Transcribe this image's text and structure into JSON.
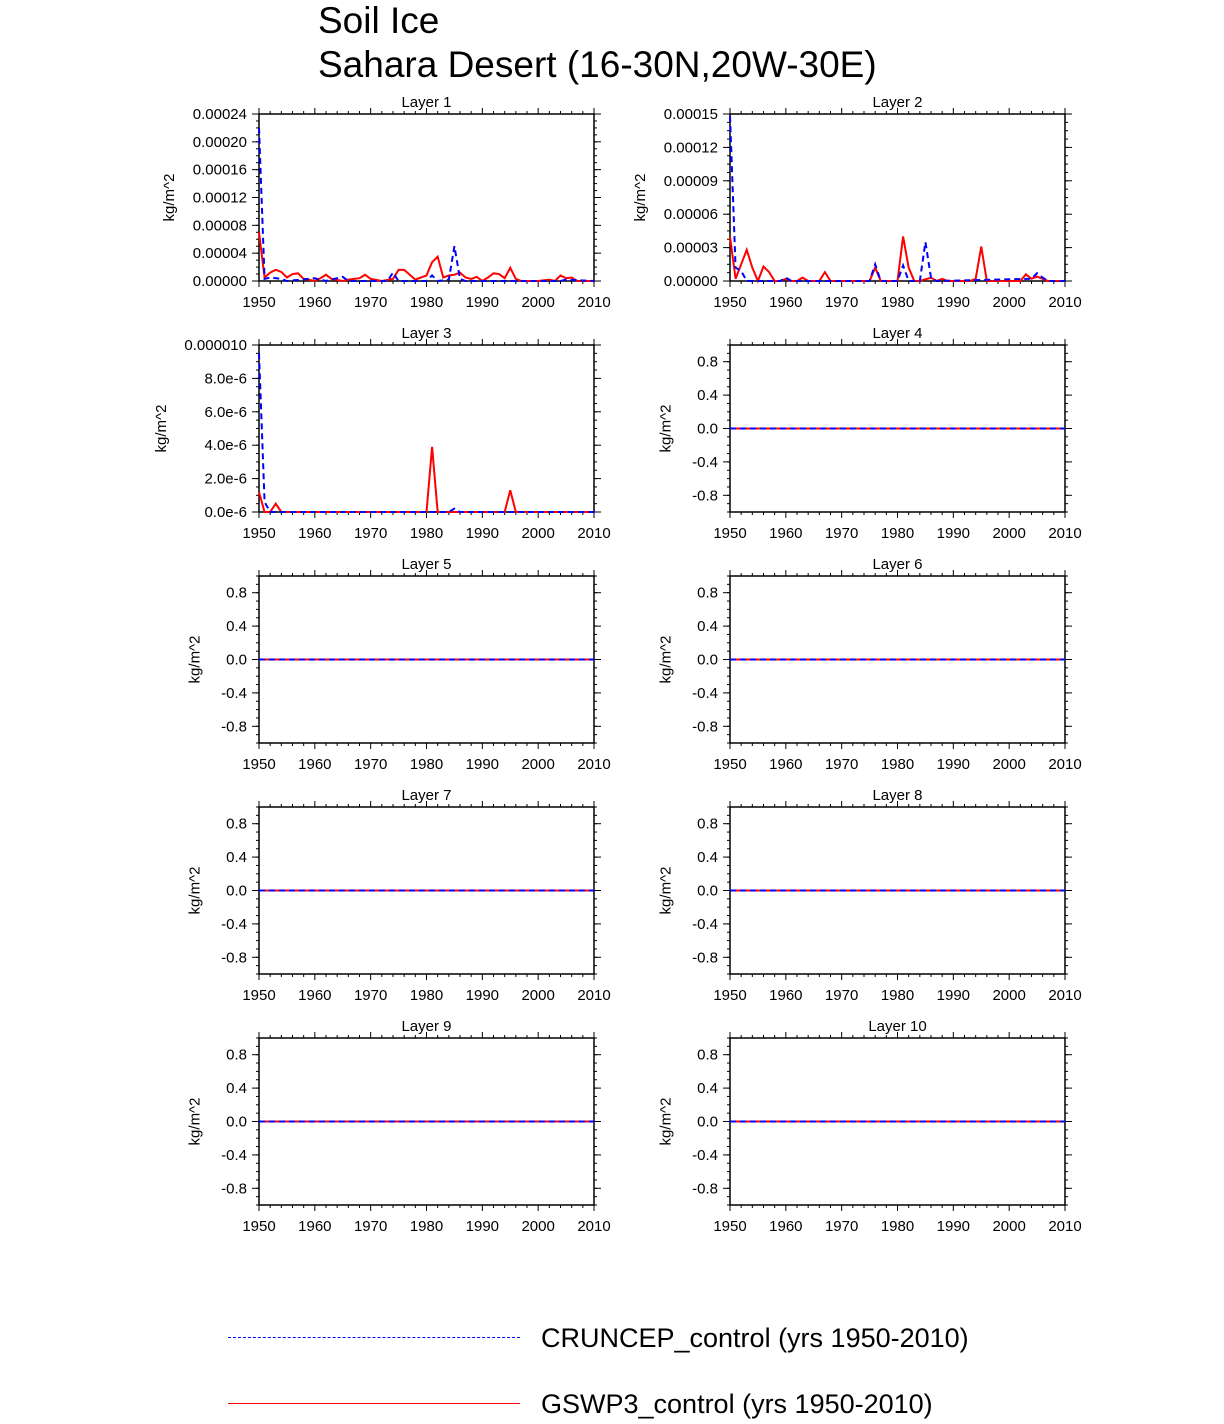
{
  "title": {
    "line1": "Soil Ice",
    "line2": "Sahara Desert (16-30N,20W-30E)"
  },
  "colors": {
    "cruncep": "#0000ff",
    "gswp3": "#ff0000",
    "axis": "#000000"
  },
  "legend": [
    {
      "label": "CRUNCEP_control (yrs 1950-2010)",
      "color": "#0000ff",
      "style": "dashed"
    },
    {
      "label": "GSWP3_control (yrs 1950-2010)",
      "color": "#ff0000",
      "style": "solid"
    }
  ],
  "chart_data": [
    {
      "type": "line",
      "title": "Layer 1",
      "ylabel": "kg/m^2",
      "xlim": [
        1950,
        2010
      ],
      "ylim": [
        0,
        0.00024
      ],
      "xticks": [
        "1950",
        "1960",
        "1970",
        "1980",
        "1990",
        "2000",
        "2010"
      ],
      "yticks": [
        {
          "v": 0,
          "t": "0.00000"
        },
        {
          "v": 4e-05,
          "t": "0.00004"
        },
        {
          "v": 8e-05,
          "t": "0.00008"
        },
        {
          "v": 0.00012,
          "t": "0.00012"
        },
        {
          "v": 0.00016,
          "t": "0.00016"
        },
        {
          "v": 0.0002,
          "t": "0.00020"
        },
        {
          "v": 0.00024,
          "t": "0.00024"
        }
      ],
      "series": [
        {
          "name": "CRUNCEP_control (yrs 1950-2010)",
          "style": "dashed",
          "x": [
            1950,
            1951,
            1952,
            1954,
            1955,
            1960,
            1962,
            1965,
            1966,
            1973,
            1974,
            1975,
            1980,
            1981,
            1982,
            1984,
            1985,
            1986,
            1987,
            2004,
            2005,
            2010
          ],
          "y": [
            0.00022,
            3e-06,
            5e-06,
            3e-06,
            0.0,
            4e-06,
            0.0,
            6e-06,
            0.0,
            0.0,
            1.2e-05,
            0.0,
            0.0,
            8e-06,
            0.0,
            2e-06,
            5e-05,
            3e-06,
            0.0,
            0.0,
            2e-06,
            0.0
          ]
        },
        {
          "name": "GSWP3_control (yrs 1950-2010)",
          "style": "solid",
          "x": [
            1950,
            1951,
            1952,
            1953,
            1954,
            1955,
            1956,
            1957,
            1958,
            1960,
            1961,
            1962,
            1963,
            1965,
            1966,
            1968,
            1969,
            1970,
            1972,
            1974,
            1975,
            1976,
            1977,
            1978,
            1980,
            1981,
            1982,
            1983,
            1984,
            1985,
            1986,
            1987,
            1988,
            1989,
            1990,
            1991,
            1992,
            1993,
            1994,
            1995,
            1996,
            1997,
            2000,
            2002,
            2003,
            2004,
            2005,
            2006,
            2007,
            2010
          ],
          "y": [
            7e-05,
            5e-06,
            1.2e-05,
            1.6e-05,
            1.3e-05,
            5e-06,
            1e-05,
            1.1e-05,
            3e-06,
            0.0,
            4e-06,
            9e-06,
            3e-06,
            0.0,
            2e-06,
            4e-06,
            9e-06,
            3e-06,
            0.0,
            3e-06,
            1.6e-05,
            1.6e-05,
            9e-06,
            2e-06,
            8e-06,
            2.7e-05,
            3.5e-05,
            5e-06,
            8e-06,
            9e-06,
            1.2e-05,
            5e-06,
            3e-06,
            6e-06,
            0.0,
            5e-06,
            1.1e-05,
            1e-05,
            4e-06,
            1.9e-05,
            3e-06,
            0.0,
            0.0,
            2e-06,
            0.0,
            8e-06,
            4e-06,
            5e-06,
            0.0,
            0.0
          ]
        }
      ]
    },
    {
      "type": "line",
      "title": "Layer 2",
      "ylabel": "kg/m^2",
      "xlim": [
        1950,
        2010
      ],
      "ylim": [
        0,
        0.00015
      ],
      "xticks": [
        "1950",
        "1960",
        "1970",
        "1980",
        "1990",
        "2000",
        "2010"
      ],
      "yticks": [
        {
          "v": 0,
          "t": "0.00000"
        },
        {
          "v": 3e-05,
          "t": "0.00003"
        },
        {
          "v": 6e-05,
          "t": "0.00006"
        },
        {
          "v": 9e-05,
          "t": "0.00009"
        },
        {
          "v": 0.00012,
          "t": "0.00012"
        },
        {
          "v": 0.00015,
          "t": "0.00015"
        }
      ],
      "series": [
        {
          "name": "CRUNCEP_control (yrs 1950-2010)",
          "style": "dashed",
          "x": [
            1950,
            1951,
            1952,
            1953,
            1954,
            1955,
            1959,
            1960,
            1961,
            1975,
            1976,
            1977,
            1980,
            1981,
            1982,
            1984,
            1985,
            1986,
            1987,
            2004,
            2005,
            2006,
            2007,
            2010
          ],
          "y": [
            0.000148,
            1.2e-05,
            9e-06,
            0.0,
            0.0,
            0.0,
            0.0,
            3e-06,
            0.0,
            0.0,
            1.5e-05,
            0.0,
            0.0,
            1.4e-05,
            0.0,
            0.0,
            3.5e-05,
            3e-06,
            0.0,
            2e-06,
            7e-06,
            3e-06,
            0.0,
            0.0
          ]
        },
        {
          "name": "GSWP3_control (yrs 1950-2010)",
          "style": "solid",
          "x": [
            1950,
            1951,
            1952,
            1953,
            1954,
            1955,
            1956,
            1957,
            1958,
            1959,
            1960,
            1961,
            1962,
            1963,
            1964,
            1966,
            1967,
            1968,
            1969,
            1970,
            1975,
            1976,
            1977,
            1980,
            1981,
            1982,
            1983,
            1984,
            1986,
            1987,
            1988,
            1989,
            1990,
            1993,
            1994,
            1995,
            1996,
            1997,
            2000,
            2002,
            2003,
            2004,
            2005,
            2006,
            2007,
            2010
          ],
          "y": [
            4e-05,
            2e-06,
            1.5e-05,
            2.8e-05,
            1.2e-05,
            0.0,
            1.3e-05,
            8e-06,
            0.0,
            0.0,
            2e-06,
            0.0,
            0.0,
            3e-06,
            0.0,
            0.0,
            8e-06,
            0.0,
            0.0,
            0.0,
            0.0,
            1.2e-05,
            0.0,
            0.0,
            4e-05,
            1.2e-05,
            0.0,
            0.0,
            3e-06,
            0.0,
            2e-06,
            0.0,
            0.0,
            0.0,
            2e-06,
            3.1e-05,
            0.0,
            0.0,
            0.0,
            0.0,
            6e-06,
            2e-06,
            4e-06,
            2e-06,
            0.0,
            0.0
          ]
        }
      ]
    },
    {
      "type": "line",
      "title": "Layer 3",
      "ylabel": "kg/m^2",
      "xlim": [
        1950,
        2010
      ],
      "ylim": [
        0,
        1e-05
      ],
      "xticks": [
        "1950",
        "1960",
        "1970",
        "1980",
        "1990",
        "2000",
        "2010"
      ],
      "yticks": [
        {
          "v": 0,
          "t": "0.0e-6"
        },
        {
          "v": 2e-06,
          "t": "2.0e-6"
        },
        {
          "v": 4e-06,
          "t": "4.0e-6"
        },
        {
          "v": 6e-06,
          "t": "6.0e-6"
        },
        {
          "v": 8e-06,
          "t": "8.0e-6"
        },
        {
          "v": 1e-05,
          "t": "0.000010"
        }
      ],
      "series": [
        {
          "name": "CRUNCEP_control (yrs 1950-2010)",
          "style": "dashed",
          "x": [
            1950,
            1951,
            1952,
            1984,
            1985,
            1986,
            2010
          ],
          "y": [
            9.5e-06,
            6e-07,
            0.0,
            0.0,
            2e-07,
            0.0,
            0.0
          ]
        },
        {
          "name": "GSWP3_control (yrs 1950-2010)",
          "style": "solid",
          "x": [
            1950,
            1951,
            1952,
            1953,
            1954,
            1955,
            1980,
            1981,
            1982,
            1994,
            1995,
            1996,
            2010
          ],
          "y": [
            1.2e-06,
            0.0,
            0.0,
            5e-07,
            0.0,
            0.0,
            0.0,
            3.9e-06,
            0.0,
            0.0,
            1.3e-06,
            0.0,
            0.0
          ]
        }
      ]
    },
    {
      "type": "line",
      "title": "Layer 4",
      "ylabel": "kg/m^2",
      "xlim": [
        1950,
        2010
      ],
      "ylim": [
        -1,
        1
      ],
      "xticks": [
        "1950",
        "1960",
        "1970",
        "1980",
        "1990",
        "2000",
        "2010"
      ],
      "yticks": [
        {
          "v": -0.8,
          "t": "-0.8"
        },
        {
          "v": -0.4,
          "t": "-0.4"
        },
        {
          "v": 0,
          "t": "0.0"
        },
        {
          "v": 0.4,
          "t": "0.4"
        },
        {
          "v": 0.8,
          "t": "0.8"
        }
      ],
      "series": [
        {
          "name": "CRUNCEP_control (yrs 1950-2010)",
          "style": "dashed",
          "x": [
            1950,
            2010
          ],
          "y": [
            0,
            0
          ]
        },
        {
          "name": "GSWP3_control (yrs 1950-2010)",
          "style": "solid",
          "x": [
            1950,
            2010
          ],
          "y": [
            0,
            0
          ]
        }
      ]
    },
    {
      "type": "line",
      "title": "Layer 5",
      "ylabel": "kg/m^2",
      "xlim": [
        1950,
        2010
      ],
      "ylim": [
        -1,
        1
      ],
      "xticks": [
        "1950",
        "1960",
        "1970",
        "1980",
        "1990",
        "2000",
        "2010"
      ],
      "yticks": [
        {
          "v": -0.8,
          "t": "-0.8"
        },
        {
          "v": -0.4,
          "t": "-0.4"
        },
        {
          "v": 0,
          "t": "0.0"
        },
        {
          "v": 0.4,
          "t": "0.4"
        },
        {
          "v": 0.8,
          "t": "0.8"
        }
      ],
      "series": [
        {
          "name": "CRUNCEP_control (yrs 1950-2010)",
          "style": "dashed",
          "x": [
            1950,
            2010
          ],
          "y": [
            0,
            0
          ]
        },
        {
          "name": "GSWP3_control (yrs 1950-2010)",
          "style": "solid",
          "x": [
            1950,
            2010
          ],
          "y": [
            0,
            0
          ]
        }
      ]
    },
    {
      "type": "line",
      "title": "Layer 6",
      "ylabel": "kg/m^2",
      "xlim": [
        1950,
        2010
      ],
      "ylim": [
        -1,
        1
      ],
      "xticks": [
        "1950",
        "1960",
        "1970",
        "1980",
        "1990",
        "2000",
        "2010"
      ],
      "yticks": [
        {
          "v": -0.8,
          "t": "-0.8"
        },
        {
          "v": -0.4,
          "t": "-0.4"
        },
        {
          "v": 0,
          "t": "0.0"
        },
        {
          "v": 0.4,
          "t": "0.4"
        },
        {
          "v": 0.8,
          "t": "0.8"
        }
      ],
      "series": [
        {
          "name": "CRUNCEP_control (yrs 1950-2010)",
          "style": "dashed",
          "x": [
            1950,
            2010
          ],
          "y": [
            0,
            0
          ]
        },
        {
          "name": "GSWP3_control (yrs 1950-2010)",
          "style": "solid",
          "x": [
            1950,
            2010
          ],
          "y": [
            0,
            0
          ]
        }
      ]
    },
    {
      "type": "line",
      "title": "Layer 7",
      "ylabel": "kg/m^2",
      "xlim": [
        1950,
        2010
      ],
      "ylim": [
        -1,
        1
      ],
      "xticks": [
        "1950",
        "1960",
        "1970",
        "1980",
        "1990",
        "2000",
        "2010"
      ],
      "yticks": [
        {
          "v": -0.8,
          "t": "-0.8"
        },
        {
          "v": -0.4,
          "t": "-0.4"
        },
        {
          "v": 0,
          "t": "0.0"
        },
        {
          "v": 0.4,
          "t": "0.4"
        },
        {
          "v": 0.8,
          "t": "0.8"
        }
      ],
      "series": [
        {
          "name": "CRUNCEP_control (yrs 1950-2010)",
          "style": "dashed",
          "x": [
            1950,
            2010
          ],
          "y": [
            0,
            0
          ]
        },
        {
          "name": "GSWP3_control (yrs 1950-2010)",
          "style": "solid",
          "x": [
            1950,
            2010
          ],
          "y": [
            0,
            0
          ]
        }
      ]
    },
    {
      "type": "line",
      "title": "Layer 8",
      "ylabel": "kg/m^2",
      "xlim": [
        1950,
        2010
      ],
      "ylim": [
        -1,
        1
      ],
      "xticks": [
        "1950",
        "1960",
        "1970",
        "1980",
        "1990",
        "2000",
        "2010"
      ],
      "yticks": [
        {
          "v": -0.8,
          "t": "-0.8"
        },
        {
          "v": -0.4,
          "t": "-0.4"
        },
        {
          "v": 0,
          "t": "0.0"
        },
        {
          "v": 0.4,
          "t": "0.4"
        },
        {
          "v": 0.8,
          "t": "0.8"
        }
      ],
      "series": [
        {
          "name": "CRUNCEP_control (yrs 1950-2010)",
          "style": "dashed",
          "x": [
            1950,
            2010
          ],
          "y": [
            0,
            0
          ]
        },
        {
          "name": "GSWP3_control (yrs 1950-2010)",
          "style": "solid",
          "x": [
            1950,
            2010
          ],
          "y": [
            0,
            0
          ]
        }
      ]
    },
    {
      "type": "line",
      "title": "Layer 9",
      "ylabel": "kg/m^2",
      "xlim": [
        1950,
        2010
      ],
      "ylim": [
        -1,
        1
      ],
      "xticks": [
        "1950",
        "1960",
        "1970",
        "1980",
        "1990",
        "2000",
        "2010"
      ],
      "yticks": [
        {
          "v": -0.8,
          "t": "-0.8"
        },
        {
          "v": -0.4,
          "t": "-0.4"
        },
        {
          "v": 0,
          "t": "0.0"
        },
        {
          "v": 0.4,
          "t": "0.4"
        },
        {
          "v": 0.8,
          "t": "0.8"
        }
      ],
      "series": [
        {
          "name": "CRUNCEP_control (yrs 1950-2010)",
          "style": "dashed",
          "x": [
            1950,
            2010
          ],
          "y": [
            0,
            0
          ]
        },
        {
          "name": "GSWP3_control (yrs 1950-2010)",
          "style": "solid",
          "x": [
            1950,
            2010
          ],
          "y": [
            0,
            0
          ]
        }
      ]
    },
    {
      "type": "line",
      "title": "Layer 10",
      "ylabel": "kg/m^2",
      "xlim": [
        1950,
        2010
      ],
      "ylim": [
        -1,
        1
      ],
      "xticks": [
        "1950",
        "1960",
        "1970",
        "1980",
        "1990",
        "2000",
        "2010"
      ],
      "yticks": [
        {
          "v": -0.8,
          "t": "-0.8"
        },
        {
          "v": -0.4,
          "t": "-0.4"
        },
        {
          "v": 0,
          "t": "0.0"
        },
        {
          "v": 0.4,
          "t": "0.4"
        },
        {
          "v": 0.8,
          "t": "0.8"
        }
      ],
      "series": [
        {
          "name": "CRUNCEP_control (yrs 1950-2010)",
          "style": "dashed",
          "x": [
            1950,
            2010
          ],
          "y": [
            0,
            0
          ]
        },
        {
          "name": "GSWP3_control (yrs 1950-2010)",
          "style": "solid",
          "x": [
            1950,
            2010
          ],
          "y": [
            0,
            0
          ]
        }
      ]
    }
  ]
}
